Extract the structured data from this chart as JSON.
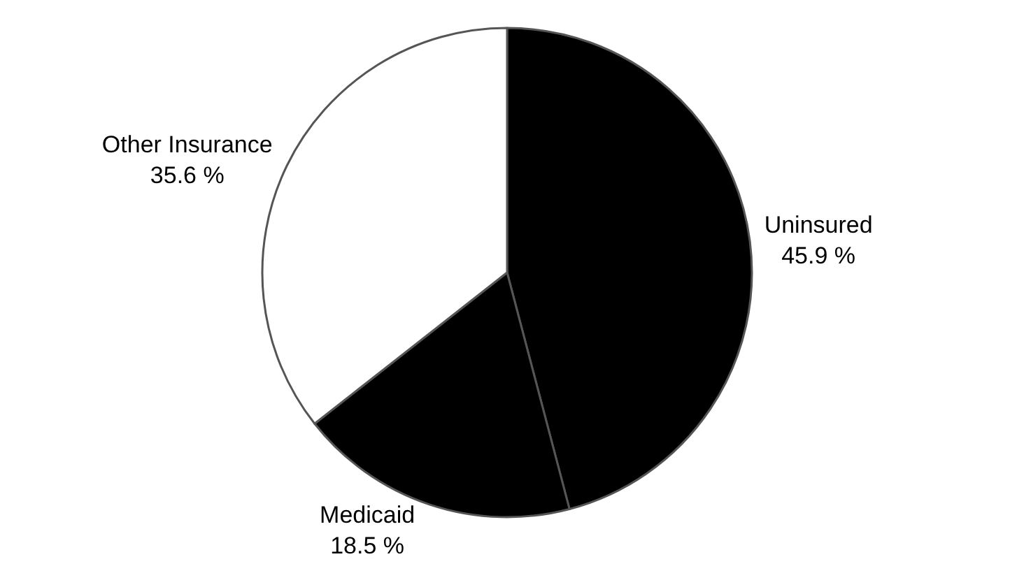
{
  "chart_data": {
    "type": "pie",
    "categories": [
      "Uninsured",
      "Medicaid",
      "Other Insurance"
    ],
    "values": [
      45.9,
      18.5,
      35.6
    ],
    "value_labels": [
      "45.9 %",
      "18.5 %",
      "35.6 %"
    ],
    "colors": [
      "#000000",
      "#000000",
      "#ffffff"
    ],
    "legend": false
  }
}
